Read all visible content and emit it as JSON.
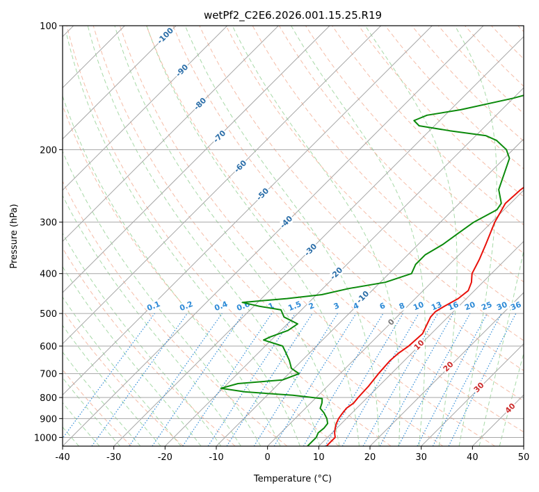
{
  "chart_data": {
    "type": "line",
    "title": "wetPf2_C2E6.2026.001.15.25.R19",
    "xlabel": "Temperature (°C)",
    "ylabel": "Pressure (hPa)",
    "xlim": [
      -40,
      50
    ],
    "ylim": [
      1050,
      100
    ],
    "x_ticks": [
      "-40",
      "-30",
      "-20",
      "-10",
      "0",
      "10",
      "20",
      "30",
      "40",
      "50"
    ],
    "y_ticks": [
      "1000",
      "900",
      "800",
      "700",
      "600",
      "500",
      "400",
      "300",
      "200",
      "100"
    ],
    "dry_adiabat_labels": [
      "-100",
      "-90",
      "-80",
      "-70",
      "-60",
      "-50",
      "-40",
      "-30",
      "-20",
      "-10"
    ],
    "mixing_ratio_labels": [
      "0.1",
      "0.2",
      "0.4",
      "0.6",
      "1",
      "1.5",
      "2",
      "3",
      "4",
      "6",
      "8",
      "10",
      "13",
      "16",
      "20",
      "25",
      "30",
      "36"
    ],
    "moist_adiabat_labels": [
      "0",
      "10",
      "20",
      "30",
      "40"
    ],
    "colors": {
      "temperature": "#e8100a",
      "dewpoint": "#0b8a0b",
      "dry_adiabat_label": "#2b6ea8",
      "mixing_ratio": "#2d8ad6",
      "moist_label": "#cc2b2b",
      "moist_adiabat": "#6cbf6c",
      "dry_adiabat": "#f2a58a",
      "isotherm": "#a6a6a6"
    },
    "series": [
      {
        "name": "Temperature",
        "points": [
          [
            1050,
            11.5
          ],
          [
            1000,
            11.5
          ],
          [
            975,
            10.5
          ],
          [
            950,
            9.7
          ],
          [
            925,
            9.0
          ],
          [
            900,
            8.5
          ],
          [
            875,
            8.2
          ],
          [
            850,
            8.0
          ],
          [
            825,
            8.4
          ],
          [
            800,
            8.2
          ],
          [
            750,
            8.0
          ],
          [
            700,
            7.5
          ],
          [
            650,
            7.2
          ],
          [
            625,
            7.4
          ],
          [
            600,
            8.0
          ],
          [
            560,
            8.3
          ],
          [
            530,
            7.3
          ],
          [
            510,
            6.6
          ],
          [
            495,
            6.5
          ],
          [
            480,
            7.2
          ],
          [
            460,
            8.4
          ],
          [
            440,
            8.8
          ],
          [
            420,
            7.8
          ],
          [
            400,
            6.2
          ],
          [
            370,
            4.9
          ],
          [
            340,
            3.2
          ],
          [
            300,
            0.6
          ],
          [
            270,
            -1.0
          ],
          [
            250,
            -0.7
          ],
          [
            230,
            0.5
          ],
          [
            210,
            2.2
          ],
          [
            200,
            4.1
          ],
          [
            190,
            8.2
          ],
          [
            180,
            11.8
          ],
          [
            170,
            12.8
          ],
          [
            160,
            13.2
          ],
          [
            150,
            14.0
          ],
          [
            140,
            16.1
          ],
          [
            130,
            18.0
          ],
          [
            120,
            19.6
          ],
          [
            110,
            20.7
          ],
          [
            100,
            24.2
          ]
        ]
      },
      {
        "name": "Dewpoint",
        "points": [
          [
            1050,
            7.8
          ],
          [
            1000,
            7.8
          ],
          [
            975,
            7.3
          ],
          [
            950,
            7.5
          ],
          [
            925,
            7.3
          ],
          [
            900,
            6.2
          ],
          [
            870,
            4.4
          ],
          [
            850,
            2.9
          ],
          [
            825,
            2.2
          ],
          [
            805,
            1.4
          ],
          [
            790,
            -5.0
          ],
          [
            775,
            -15.0
          ],
          [
            760,
            -20.4
          ],
          [
            740,
            -18.0
          ],
          [
            725,
            -10.0
          ],
          [
            700,
            -8.0
          ],
          [
            680,
            -10.5
          ],
          [
            650,
            -12.5
          ],
          [
            620,
            -14.9
          ],
          [
            600,
            -16.6
          ],
          [
            580,
            -21.5
          ],
          [
            570,
            -20.8
          ],
          [
            550,
            -18.6
          ],
          [
            530,
            -18.0
          ],
          [
            510,
            -22.0
          ],
          [
            490,
            -24.0
          ],
          [
            480,
            -29.0
          ],
          [
            470,
            -33.0
          ],
          [
            460,
            -25.0
          ],
          [
            450,
            -19.0
          ],
          [
            435,
            -15.0
          ],
          [
            420,
            -9.0
          ],
          [
            400,
            -5.6
          ],
          [
            380,
            -6.6
          ],
          [
            360,
            -6.6
          ],
          [
            340,
            -5.2
          ],
          [
            320,
            -4.4
          ],
          [
            300,
            -3.5
          ],
          [
            280,
            -1.4
          ],
          [
            270,
            -1.8
          ],
          [
            250,
            -5.0
          ],
          [
            230,
            -6.9
          ],
          [
            210,
            -9.0
          ],
          [
            200,
            -11.3
          ],
          [
            190,
            -15.0
          ],
          [
            185,
            -18.0
          ],
          [
            180,
            -26.0
          ],
          [
            175,
            -33.0
          ],
          [
            170,
            -35.0
          ],
          [
            165,
            -33.5
          ],
          [
            160,
            -28.0
          ],
          [
            150,
            -20.0
          ],
          [
            140,
            -13.5
          ],
          [
            130,
            -11.0
          ],
          [
            120,
            -8.5
          ],
          [
            110,
            -5.0
          ],
          [
            105,
            -2.5
          ],
          [
            100,
            -0.7
          ]
        ]
      }
    ]
  }
}
